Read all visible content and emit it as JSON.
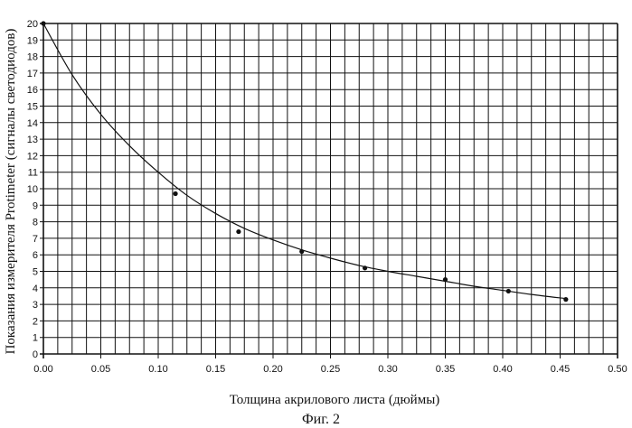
{
  "chart_data": {
    "type": "scatter",
    "xlabel": "Толщина акрилового листа (дюймы)",
    "ylabel": "Показания измерителя Protimeter (сигналы светодиодов)",
    "caption": "Фиг. 2",
    "xlim": [
      0,
      0.5
    ],
    "ylim": [
      0,
      20
    ],
    "x_ticks": [
      "0.00",
      "0.05",
      "0.10",
      "0.15",
      "0.20",
      "0.25",
      "0.30",
      "0.35",
      "0.40",
      "0.45",
      "0.50"
    ],
    "y_ticks": [
      "0",
      "1",
      "2",
      "3",
      "4",
      "5",
      "6",
      "7",
      "8",
      "9",
      "10",
      "11",
      "12",
      "13",
      "14",
      "15",
      "16",
      "17",
      "18",
      "19",
      "20"
    ],
    "x_minor_step": 0.0125,
    "y_minor_step": 1,
    "grid": true,
    "series": [
      {
        "points": [
          {
            "x": 0.0,
            "y": 20.0
          },
          {
            "x": 0.115,
            "y": 9.7
          },
          {
            "x": 0.17,
            "y": 7.4
          },
          {
            "x": 0.225,
            "y": 6.2
          },
          {
            "x": 0.28,
            "y": 5.2
          },
          {
            "x": 0.35,
            "y": 4.5
          },
          {
            "x": 0.405,
            "y": 3.8
          },
          {
            "x": 0.455,
            "y": 3.3
          }
        ],
        "trend": [
          {
            "x": 0.0,
            "y": 20.0
          },
          {
            "x": 0.025,
            "y": 16.9
          },
          {
            "x": 0.05,
            "y": 14.5
          },
          {
            "x": 0.075,
            "y": 12.6
          },
          {
            "x": 0.1,
            "y": 11.0
          },
          {
            "x": 0.125,
            "y": 9.6
          },
          {
            "x": 0.15,
            "y": 8.5
          },
          {
            "x": 0.175,
            "y": 7.6
          },
          {
            "x": 0.2,
            "y": 6.9
          },
          {
            "x": 0.225,
            "y": 6.3
          },
          {
            "x": 0.25,
            "y": 5.8
          },
          {
            "x": 0.275,
            "y": 5.35
          },
          {
            "x": 0.3,
            "y": 5.0
          },
          {
            "x": 0.325,
            "y": 4.7
          },
          {
            "x": 0.35,
            "y": 4.4
          },
          {
            "x": 0.375,
            "y": 4.1
          },
          {
            "x": 0.4,
            "y": 3.85
          },
          {
            "x": 0.425,
            "y": 3.6
          },
          {
            "x": 0.455,
            "y": 3.35
          }
        ]
      }
    ]
  }
}
